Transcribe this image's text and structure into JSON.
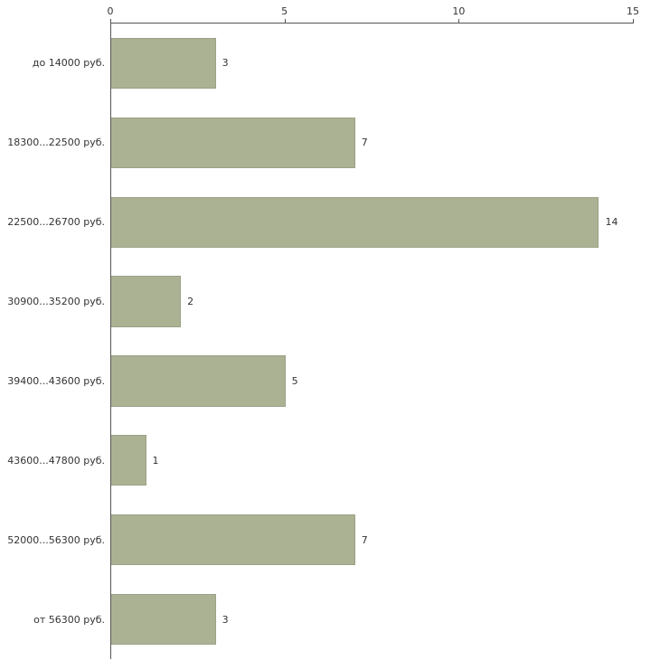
{
  "chart_data": {
    "type": "bar",
    "orientation": "horizontal",
    "title": "",
    "xlabel": "",
    "ylabel": "",
    "categories": [
      "до 14000 руб.",
      "18300...22500 руб.",
      "22500...26700 руб.",
      "30900...35200 руб.",
      "39400...43600 руб.",
      "43600...47800 руб.",
      "52000...56300 руб.",
      "от 56300 руб."
    ],
    "values": [
      3,
      7,
      14,
      2,
      5,
      1,
      7,
      3
    ],
    "xlim": [
      0,
      15
    ],
    "x_ticks": [
      0,
      5,
      10,
      15
    ],
    "grid": false,
    "legend": "none",
    "colors": {
      "background": "#ffffff",
      "bar_fill": "#abb294",
      "bar_border": "#9aa185",
      "axis": "#555555",
      "text": "#333333"
    }
  }
}
